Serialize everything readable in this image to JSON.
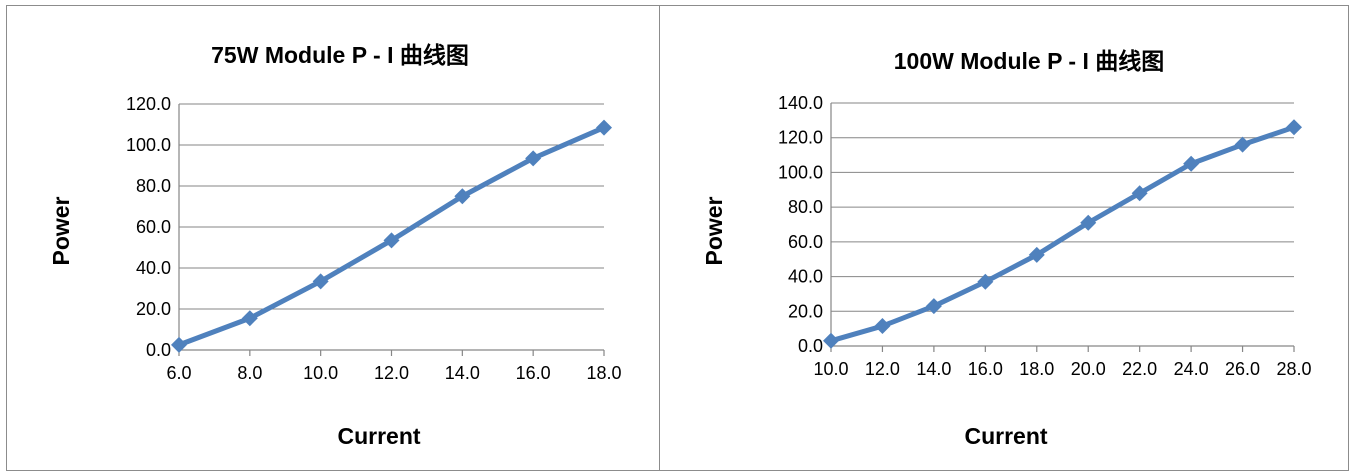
{
  "chart_data": [
    {
      "type": "line",
      "title": "75W Module P - I  曲线图",
      "xlabel": "Current",
      "ylabel": "Power",
      "x_ticks": [
        "6.0",
        "8.0",
        "10.0",
        "12.0",
        "14.0",
        "16.0",
        "18.0"
      ],
      "y_ticks": [
        "0.0",
        "20.0",
        "40.0",
        "60.0",
        "80.0",
        "100.0",
        "120.0"
      ],
      "xlim": [
        6,
        18
      ],
      "ylim": [
        0,
        120
      ],
      "grid": true,
      "legend": "none",
      "series_color": "#4f81bd",
      "x": [
        6,
        8,
        10,
        12,
        14,
        16,
        18
      ],
      "values": [
        2.5,
        15.5,
        33.5,
        53.5,
        75.0,
        93.5,
        108.5
      ]
    },
    {
      "type": "line",
      "title": "100W Module P - I  曲线图",
      "xlabel": "Current",
      "ylabel": "Power",
      "x_ticks": [
        "10.0",
        "12.0",
        "14.0",
        "16.0",
        "18.0",
        "20.0",
        "22.0",
        "24.0",
        "26.0",
        "28.0"
      ],
      "y_ticks": [
        "0.0",
        "20.0",
        "40.0",
        "60.0",
        "80.0",
        "100.0",
        "120.0",
        "140.0"
      ],
      "xlim": [
        10,
        28
      ],
      "ylim": [
        0,
        140
      ],
      "grid": true,
      "legend": "none",
      "series_color": "#4f81bd",
      "x": [
        10,
        12,
        14,
        16,
        18,
        20,
        22,
        24,
        26,
        28
      ],
      "values": [
        3.0,
        11.5,
        23.0,
        37.0,
        52.5,
        71.0,
        88.0,
        105.0,
        116.0,
        126.0
      ]
    }
  ]
}
